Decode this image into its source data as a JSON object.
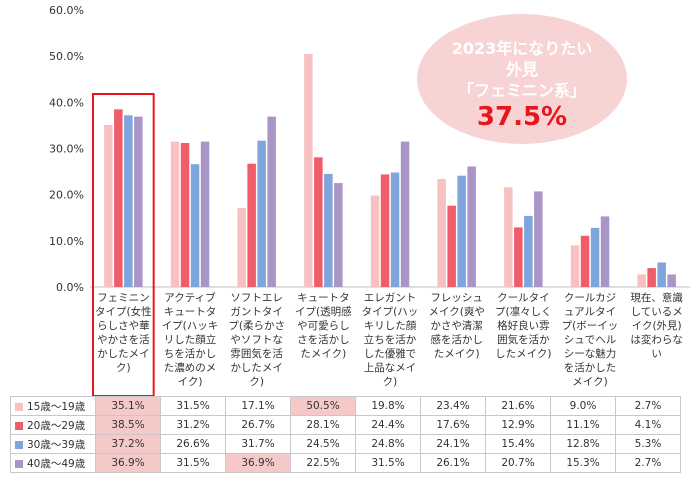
{
  "chart_data": {
    "type": "bar",
    "categories": [
      "フェミニンタイプ(女性らしさや華やかさを活かしたメイク)",
      "アクティブキュートタイプ(ハッキリした顔立ちを活かした濃めのメイク)",
      "ソフトエレガントタイプ(柔らかさやソフトな雰囲気を活かしたメイク)",
      "キュートタイプ(透明感や可愛らしさを活かしたメイク)",
      "エレガントタイプ(ハッキリした顔立ちを活かした優雅で上品なメイク)",
      "フレッシュメイク(爽やかさや清潔感を活かしたメイク)",
      "クールタイプ(凛々しく格好良い雰囲気を活かしたメイク)",
      "クールカジュアルタイプ(ボーイッシュでヘルシーな魅力を活かしたメイク)",
      "現在、意識しているメイク(外見)は変わらない"
    ],
    "series": [
      {
        "name": "15歳～19歳",
        "values": [
          35.1,
          31.5,
          17.1,
          50.5,
          19.8,
          23.4,
          21.6,
          9.0,
          2.7
        ],
        "labels": [
          "35.1%",
          "31.5%",
          "17.1%",
          "50.5%",
          "19.8%",
          "23.4%",
          "21.6%",
          "9.0%",
          "2.7%"
        ]
      },
      {
        "name": "20歳～29歳",
        "values": [
          38.5,
          31.2,
          26.7,
          28.1,
          24.4,
          17.6,
          12.9,
          11.1,
          4.1
        ],
        "labels": [
          "38.5%",
          "31.2%",
          "26.7%",
          "28.1%",
          "24.4%",
          "17.6%",
          "12.9%",
          "11.1%",
          "4.1%"
        ]
      },
      {
        "name": "30歳～39歳",
        "values": [
          37.2,
          26.6,
          31.7,
          24.5,
          24.8,
          24.1,
          15.4,
          12.8,
          5.3
        ],
        "labels": [
          "37.2%",
          "26.6%",
          "31.7%",
          "24.5%",
          "24.8%",
          "24.1%",
          "15.4%",
          "12.8%",
          "5.3%"
        ]
      },
      {
        "name": "40歳～49歳",
        "values": [
          36.9,
          31.5,
          36.9,
          22.5,
          31.5,
          26.1,
          20.7,
          15.3,
          2.7
        ],
        "labels": [
          "36.9%",
          "31.5%",
          "36.9%",
          "22.5%",
          "31.5%",
          "26.1%",
          "20.7%",
          "15.3%",
          "2.7%"
        ]
      }
    ],
    "highlighted_cells": [
      [
        0,
        0
      ],
      [
        1,
        0
      ],
      [
        2,
        0
      ],
      [
        3,
        0
      ],
      [
        0,
        3
      ],
      [
        3,
        2
      ]
    ],
    "yticks": [
      "0.0%",
      "10.0%",
      "20.0%",
      "30.0%",
      "40.0%",
      "50.0%",
      "60.0%"
    ],
    "ylim": [
      0,
      60
    ],
    "grid": false,
    "legend": "table-below",
    "colors": [
      "#f7c1c1",
      "#ef5c6a",
      "#7fa6dc",
      "#a995c6"
    ],
    "highlight_color": "#f6c9c9",
    "frame_color": "#e8141e"
  },
  "callout": {
    "line1": "2023年になりたい",
    "line2": "外見",
    "line3": "「フェミニン系」",
    "value": "37.5%"
  }
}
